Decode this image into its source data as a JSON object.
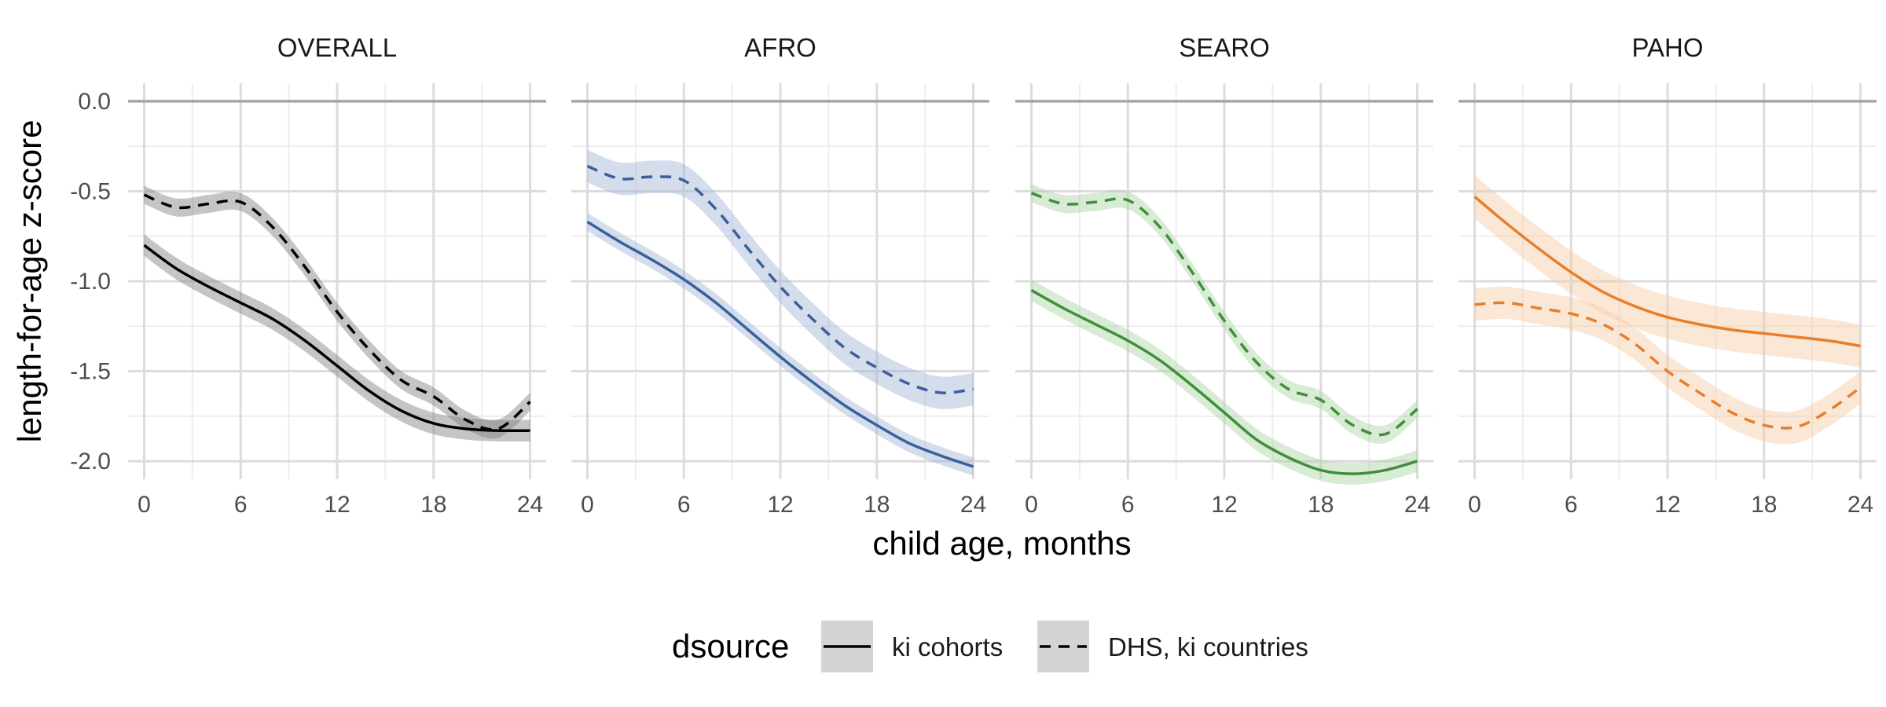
{
  "chart_data": {
    "type": "line",
    "ylabel": "length-for-age z-score",
    "xlabel": "child age, months",
    "x_ticks": [
      0,
      6,
      12,
      18,
      24
    ],
    "y_ticks": [
      0.0,
      -0.5,
      -1.0,
      -1.5,
      -2.0
    ],
    "y_tick_labels": [
      "0.0",
      "-0.5",
      "-1.0",
      "-1.5",
      "-2.0"
    ],
    "xlim": [
      -1,
      25
    ],
    "ylim": [
      -2.1,
      0.1
    ],
    "reference_line": 0.0,
    "grid": true,
    "legend": {
      "title": "dsource",
      "position": "bottom",
      "entries": [
        {
          "label": "ki cohorts",
          "linetype": "solid"
        },
        {
          "label": "DHS, ki countries",
          "linetype": "dashed"
        }
      ]
    },
    "panels": [
      {
        "title": "OVERALL",
        "color": "#000000",
        "band_color": "#7f7f7f",
        "x": [
          0,
          2,
          4,
          6,
          8,
          10,
          12,
          14,
          16,
          18,
          20,
          22,
          24
        ],
        "series": [
          {
            "name": "ki cohorts",
            "linetype": "solid",
            "values": [
              -0.8,
              -0.93,
              -1.03,
              -1.12,
              -1.21,
              -1.33,
              -1.47,
              -1.61,
              -1.72,
              -1.79,
              -1.82,
              -1.83,
              -1.83
            ],
            "ci_halfwidth": 0.06
          },
          {
            "name": "DHS, ki countries",
            "linetype": "dashed",
            "values": [
              -0.52,
              -0.59,
              -0.57,
              -0.56,
              -0.7,
              -0.92,
              -1.17,
              -1.38,
              -1.55,
              -1.64,
              -1.77,
              -1.82,
              -1.67
            ],
            "ci_halfwidth": 0.05
          }
        ]
      },
      {
        "title": "AFRO",
        "color": "#3a5f9a",
        "band_color": "#9fb4d4",
        "x": [
          0,
          2,
          4,
          6,
          8,
          10,
          12,
          14,
          16,
          18,
          20,
          22,
          24
        ],
        "series": [
          {
            "name": "ki cohorts",
            "linetype": "solid",
            "values": [
              -0.67,
              -0.78,
              -0.88,
              -0.99,
              -1.12,
              -1.27,
              -1.42,
              -1.56,
              -1.69,
              -1.8,
              -1.9,
              -1.97,
              -2.03
            ],
            "ci_halfwidth": 0.05
          },
          {
            "name": "DHS, ki countries",
            "linetype": "dashed",
            "values": [
              -0.36,
              -0.43,
              -0.42,
              -0.44,
              -0.6,
              -0.82,
              -1.03,
              -1.21,
              -1.37,
              -1.48,
              -1.57,
              -1.62,
              -1.6
            ],
            "ci_halfwidth": 0.09
          }
        ]
      },
      {
        "title": "SEARO",
        "color": "#3f8f3a",
        "band_color": "#a9d3a0",
        "x": [
          0,
          2,
          4,
          6,
          8,
          10,
          12,
          14,
          16,
          18,
          20,
          22,
          24
        ],
        "series": [
          {
            "name": "ki cohorts",
            "linetype": "solid",
            "values": [
              -1.05,
              -1.15,
              -1.24,
              -1.33,
              -1.44,
              -1.58,
              -1.73,
              -1.88,
              -1.98,
              -2.05,
              -2.07,
              -2.05,
              -2.0
            ],
            "ci_halfwidth": 0.06
          },
          {
            "name": "DHS, ki countries",
            "linetype": "dashed",
            "values": [
              -0.51,
              -0.57,
              -0.56,
              -0.55,
              -0.7,
              -0.95,
              -1.22,
              -1.45,
              -1.6,
              -1.66,
              -1.8,
              -1.85,
              -1.71
            ],
            "ci_halfwidth": 0.05
          }
        ]
      },
      {
        "title": "PAHO",
        "color": "#e87d2a",
        "band_color": "#f6c9a4",
        "x": [
          0,
          2,
          4,
          6,
          8,
          10,
          12,
          14,
          16,
          18,
          20,
          22,
          24
        ],
        "series": [
          {
            "name": "ki cohorts",
            "linetype": "solid",
            "values": [
              -0.53,
              -0.68,
              -0.82,
              -0.95,
              -1.06,
              -1.14,
              -1.2,
              -1.24,
              -1.27,
              -1.29,
              -1.31,
              -1.33,
              -1.36
            ],
            "ci_halfwidth": 0.12
          },
          {
            "name": "DHS, ki countries",
            "linetype": "dashed",
            "values": [
              -1.13,
              -1.12,
              -1.15,
              -1.18,
              -1.24,
              -1.35,
              -1.5,
              -1.62,
              -1.73,
              -1.8,
              -1.81,
              -1.72,
              -1.59
            ],
            "ci_halfwidth": 0.09
          }
        ]
      }
    ]
  }
}
